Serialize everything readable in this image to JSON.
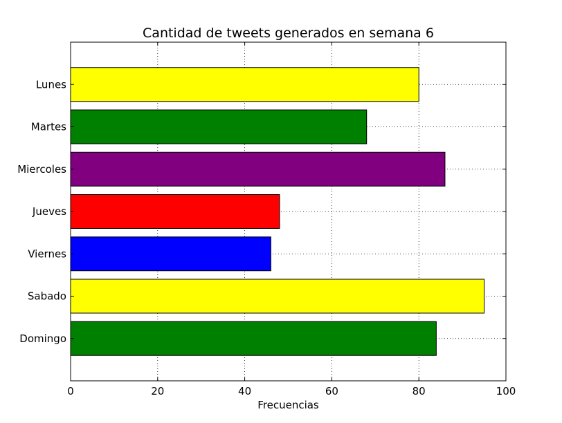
{
  "chart_data": {
    "type": "bar",
    "orientation": "horizontal",
    "title": "Cantidad de tweets generados en semana 6",
    "xlabel": "Frecuencias",
    "ylabel": "",
    "categories": [
      "Lunes",
      "Martes",
      "Miercoles",
      "Jueves",
      "Viernes",
      "Sabado",
      "Domingo"
    ],
    "values": [
      80,
      68,
      86,
      48,
      46,
      95,
      84
    ],
    "colors": [
      "#ffff00",
      "#008000",
      "#800080",
      "#ff0000",
      "#0000ff",
      "#ffff00",
      "#008000"
    ],
    "xlim": [
      0,
      100
    ],
    "xticks": [
      0,
      20,
      40,
      60,
      80,
      100
    ],
    "grid": true
  }
}
